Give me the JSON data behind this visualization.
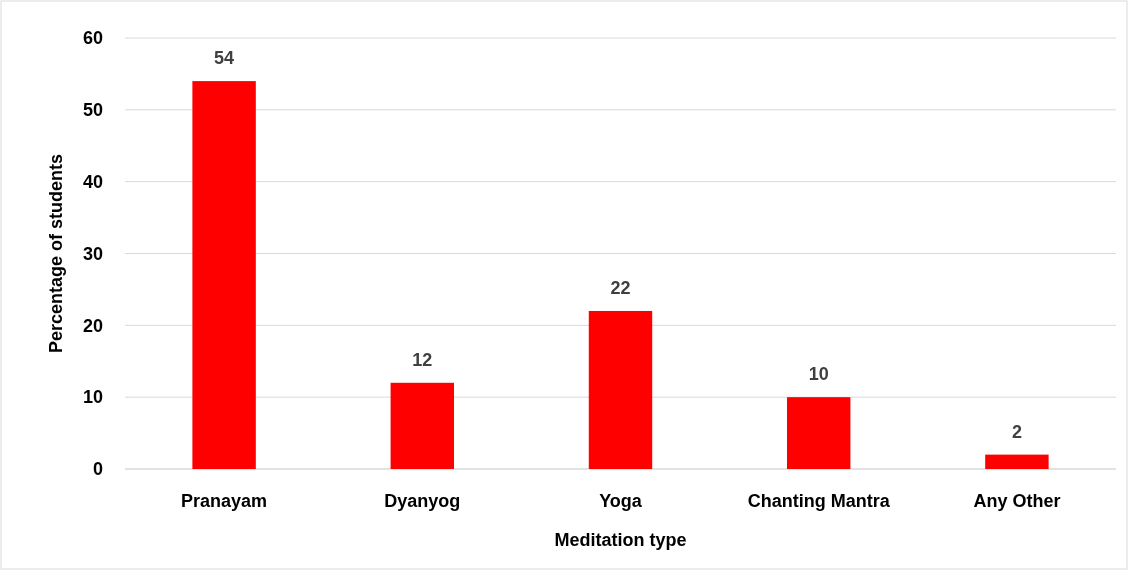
{
  "chart_data": {
    "type": "bar",
    "xlabel": "Meditation type",
    "ylabel": "Percentage of students",
    "categories": [
      "Pranayam",
      "Dyanyog",
      "Yoga",
      "Chanting Mantra",
      "Any Other"
    ],
    "values": [
      54,
      12,
      22,
      10,
      2
    ],
    "color": "#ff0000",
    "ylim": [
      0,
      60
    ],
    "yticks": [
      0,
      10,
      20,
      30,
      40,
      50,
      60
    ],
    "grid": "y",
    "data_labels": true
  }
}
